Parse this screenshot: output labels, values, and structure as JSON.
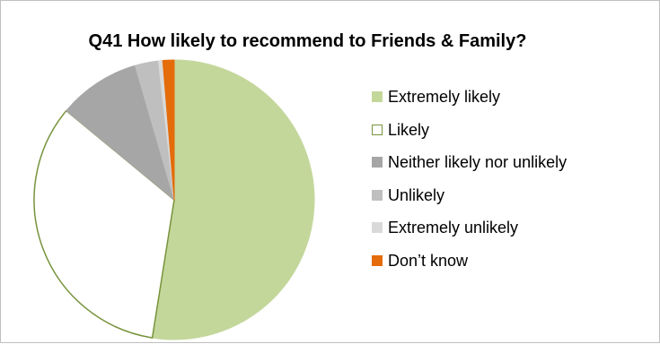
{
  "chart_data": {
    "type": "pie",
    "title": "Q41 How likely to recommend to Friends & Family?",
    "categories": [
      "Extremely likely",
      "Likely",
      "Neither likely nor unlikely",
      "Unlikely",
      "Extremely unlikely",
      "Don’t know"
    ],
    "values": [
      52.5,
      33.5,
      9.5,
      2.7,
      0.5,
      1.3
    ],
    "unit": "%",
    "colors": [
      "#c4d79b",
      "#ffffff",
      "#a6a6a6",
      "#bfbfbf",
      "#d9d9d9",
      "#e46c0a"
    ],
    "borders": [
      "#c4d79b",
      "#77933c",
      "#a6a6a6",
      "#bfbfbf",
      "#d9d9d9",
      "#e46c0a"
    ],
    "start_angle_deg": 0,
    "direction": "clockwise",
    "legend": "right",
    "data_labels": false
  }
}
